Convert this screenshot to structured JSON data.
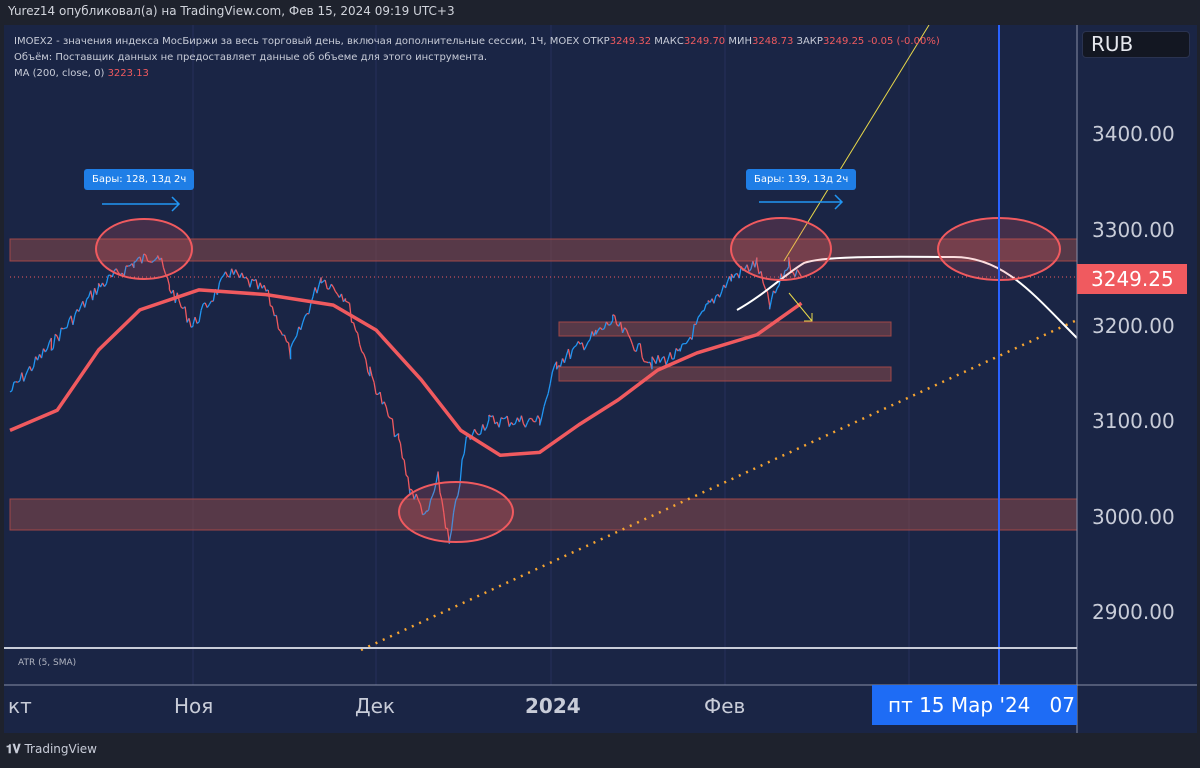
{
  "header": {
    "publisher": "Yurez14 опубликовал(а) на TradingView.com, Фев 15, 2024 09:19 UTC+3"
  },
  "legend": {
    "symbol": "IMOEX2 - значения индекса МосБиржи за весь торговый день, включая дополнительные сессии, 1Ч, MOEX",
    "open_label": "ОТКР",
    "open": "3249.32",
    "high_label": "МАКС",
    "high": "3249.70",
    "low_label": "МИН",
    "low": "3248.73",
    "close_label": "ЗАКР",
    "close": "3249.25",
    "change": "-0.05 (-0.00%)",
    "volume": "Объём: Поставщик данных не предоставляет данные об объеме для этого инструмента.",
    "ma_label": "MA (200, close, 0)",
    "ma_value": "3223.13"
  },
  "currency": "RUB",
  "last_price": "3249.25",
  "indicator_pane": "ATR (5, SMA)",
  "crosshair_date": "пт 15 Мар '24",
  "crosshair_extra": "07",
  "brand": "TradingView",
  "measure_labels": [
    "Бары: 128, 13д 2ч",
    "Бары: 139, 13д 2ч"
  ],
  "colors": {
    "up": "#2196f3",
    "down": "#f05a5f",
    "ma": "#f05a5f",
    "background": "#1a2545",
    "crosshair": "#2962ff",
    "forecast": "#ffffff",
    "trend": "#f7a531"
  },
  "chart_data": {
    "type": "line",
    "ylim": [
      2850,
      3460
    ],
    "y_ticks": [
      "3400.00",
      "3300.00",
      "3200.00",
      "3100.00",
      "3000.00",
      "2900.00"
    ],
    "x_ticks": [
      "кт",
      "Ноя",
      "Дек",
      "2024",
      "Фев"
    ],
    "series": [
      {
        "points": [
          [
            "2023-10-01",
            3130
          ],
          [
            "2023-10-08",
            3180
          ],
          [
            "2023-10-16",
            3240
          ],
          [
            "2023-10-22",
            3265
          ],
          [
            "2023-10-26",
            3275
          ],
          [
            "2023-10-28",
            3240
          ],
          [
            "2023-11-01",
            3200
          ],
          [
            "2023-11-07",
            3255
          ],
          [
            "2023-11-13",
            3235
          ],
          [
            "2023-11-17",
            3170
          ],
          [
            "2023-11-22",
            3250
          ],
          [
            "2023-11-26",
            3230
          ],
          [
            "2023-11-30",
            3150
          ],
          [
            "2023-12-05",
            3080
          ],
          [
            "2023-12-07",
            3030
          ],
          [
            "2023-12-10",
            3000
          ],
          [
            "2023-12-12",
            3040
          ],
          [
            "2023-12-14",
            2970
          ],
          [
            "2023-12-17",
            3080
          ],
          [
            "2023-12-21",
            3100
          ],
          [
            "2023-12-30",
            3100
          ],
          [
            "2024-01-02",
            3160
          ],
          [
            "2024-01-09",
            3190
          ],
          [
            "2024-01-12",
            3205
          ],
          [
            "2024-01-19",
            3160
          ],
          [
            "2024-01-24",
            3170
          ],
          [
            "2024-01-29",
            3220
          ],
          [
            "2024-02-02",
            3250
          ],
          [
            "2024-02-06",
            3265
          ],
          [
            "2024-02-08",
            3220
          ],
          [
            "2024-02-11",
            3265
          ],
          [
            "2024-02-13",
            3249
          ]
        ]
      },
      {
        "name": "MA (200, close, 0)",
        "points": [
          [
            "2023-10-01",
            3090
          ],
          [
            "2023-10-09",
            3111
          ],
          [
            "2023-10-16",
            3174
          ],
          [
            "2023-10-23",
            3216
          ],
          [
            "2023-11-02",
            3237
          ],
          [
            "2023-11-13",
            3232
          ],
          [
            "2023-11-24",
            3221
          ],
          [
            "2023-12-01",
            3195
          ],
          [
            "2023-12-09",
            3143
          ],
          [
            "2023-12-16",
            3090
          ],
          [
            "2023-12-23",
            3064
          ],
          [
            "2023-12-30",
            3067
          ],
          [
            "2024-01-06",
            3096
          ],
          [
            "2024-01-13",
            3122
          ],
          [
            "2024-01-20",
            3153
          ],
          [
            "2024-01-27",
            3171
          ],
          [
            "2024-02-06",
            3190
          ],
          [
            "2024-02-13",
            3223
          ]
        ]
      }
    ]
  }
}
